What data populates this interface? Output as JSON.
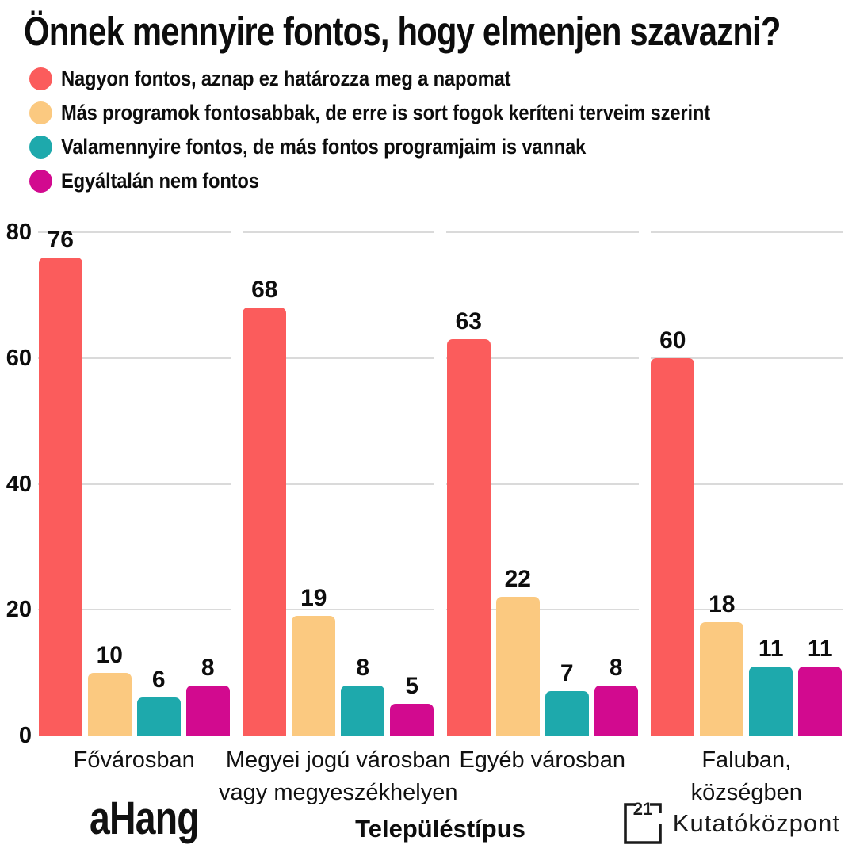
{
  "title": "Önnek mennyire fontos, hogy elmenjen szavazni?",
  "legend": {
    "items": [
      {
        "label": "Nagyon fontos, aznap ez határozza meg a napomat",
        "color": "#FB5C5C"
      },
      {
        "label": "Más programok fontosabbak, de erre is sort fogok keríteni terveim szerint",
        "color": "#FBC980"
      },
      {
        "label": "Valamennyire fontos, de más fontos programjaim is vannak",
        "color": "#1EA9AC"
      },
      {
        "label": "Egyáltalán nem fontos",
        "color": "#D20A8F"
      }
    ]
  },
  "chart_data": {
    "type": "bar",
    "title": "Önnek mennyire fontos, hogy elmenjen szavazni?",
    "xlabel": "Településtípus",
    "ylabel": "",
    "ylim": [
      0,
      80
    ],
    "yticks": [
      0,
      20,
      40,
      60,
      80
    ],
    "grid": true,
    "legend_position": "top-left",
    "value_labels": true,
    "categories": [
      "Fővárosban",
      "Megyei jogú városban\nvagy megyeszékhelyen",
      "Egyéb városban",
      "Faluban,\nközségben"
    ],
    "series": [
      {
        "name": "Nagyon fontos, aznap ez határozza meg a napomat",
        "color": "#FB5C5C",
        "values": [
          76,
          68,
          63,
          60
        ]
      },
      {
        "name": "Más programok fontosabbak, de erre is sort fogok keríteni terveim szerint",
        "color": "#FBC980",
        "values": [
          10,
          19,
          22,
          18
        ]
      },
      {
        "name": "Valamennyire fontos, de más fontos programjaim is vannak",
        "color": "#1EA9AC",
        "values": [
          6,
          8,
          7,
          11
        ]
      },
      {
        "name": "Egyáltalán nem fontos",
        "color": "#D20A8F",
        "values": [
          8,
          5,
          8,
          11
        ]
      }
    ]
  },
  "footer": {
    "ahang_logo": {
      "text": "aHang",
      "color": "#F5391D",
      "icon": "bar-chart-circle-icon"
    },
    "research_center_logo": {
      "number": "21",
      "text": "Kutatóközpont"
    }
  },
  "colors": {
    "background": "#FFFFFF",
    "text": "#0D0D0D",
    "gridline": "#DADADA"
  }
}
